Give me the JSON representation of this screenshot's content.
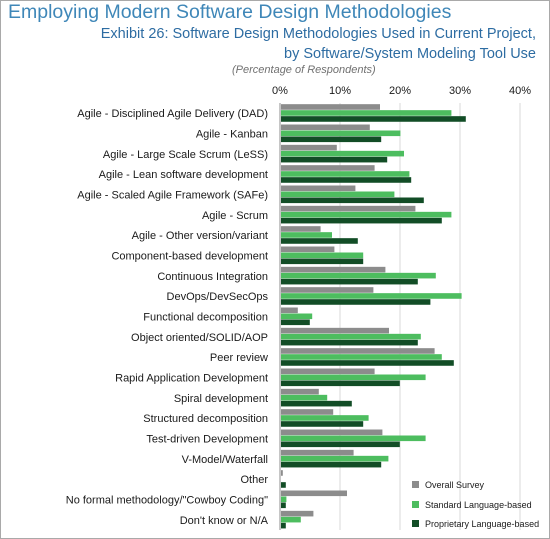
{
  "page": {
    "title": "Employing Modern Software Design Methodologies"
  },
  "chart_data": {
    "type": "bar",
    "orientation": "horizontal",
    "title": "Exhibit 26: Software Design Methodologies Used in Current Project,",
    "title_line2": "by Software/System Modeling Tool Use",
    "subtitle": "(Percentage of Respondents)",
    "xlabel": "",
    "ylabel": "",
    "xlim": [
      0,
      40
    ],
    "x_ticks": [
      "0%",
      "10%",
      "20%",
      "30%",
      "40%"
    ],
    "x_tick_values": [
      0,
      10,
      20,
      30,
      40
    ],
    "grid": true,
    "legend_position": "bottom-right",
    "categories": [
      "Agile - Disciplined Agile Delivery (DAD)",
      "Agile - Kanban",
      "Agile - Large Scale Scrum (LeSS)",
      "Agile - Lean software development",
      "Agile - Scaled Agile Framework (SAFe)",
      "Agile - Scrum",
      "Agile - Other version/variant",
      "Component-based development",
      "Continuous Integration",
      "DevOps/DevSecOps",
      "Functional decomposition",
      "Object oriented/SOLID/AOP",
      "Peer review",
      "Rapid Application Development",
      "Spiral development",
      "Structured decomposition",
      "Test-driven Development",
      "V-Model/Waterfall",
      "Other",
      "No formal methodology/\"Cowboy Coding\"",
      "Don't know or N/A"
    ],
    "series": [
      {
        "name": "Overall Survey",
        "color": "#8c8c8c",
        "values": [
          16.5,
          14.8,
          9.3,
          15.6,
          12.4,
          22.4,
          6.6,
          8.9,
          17.4,
          15.4,
          2.8,
          18.0,
          25.6,
          15.6,
          6.3,
          8.7,
          16.9,
          12.1,
          0.3,
          11.0,
          5.4
        ]
      },
      {
        "name": "Standard Language-based",
        "color": "#4dbd5f",
        "values": [
          28.4,
          19.9,
          20.5,
          21.4,
          18.9,
          28.4,
          8.5,
          13.7,
          25.8,
          30.1,
          5.2,
          23.3,
          26.8,
          24.1,
          7.7,
          14.6,
          24.1,
          17.9,
          0.0,
          0.9,
          3.3
        ]
      },
      {
        "name": "Proprietary Language-based",
        "color": "#124d26",
        "values": [
          30.8,
          16.7,
          17.7,
          21.7,
          23.8,
          26.8,
          12.8,
          13.7,
          22.8,
          24.9,
          4.8,
          22.8,
          28.8,
          19.8,
          11.8,
          13.7,
          19.8,
          16.7,
          0.8,
          0.8,
          0.8
        ]
      }
    ]
  }
}
